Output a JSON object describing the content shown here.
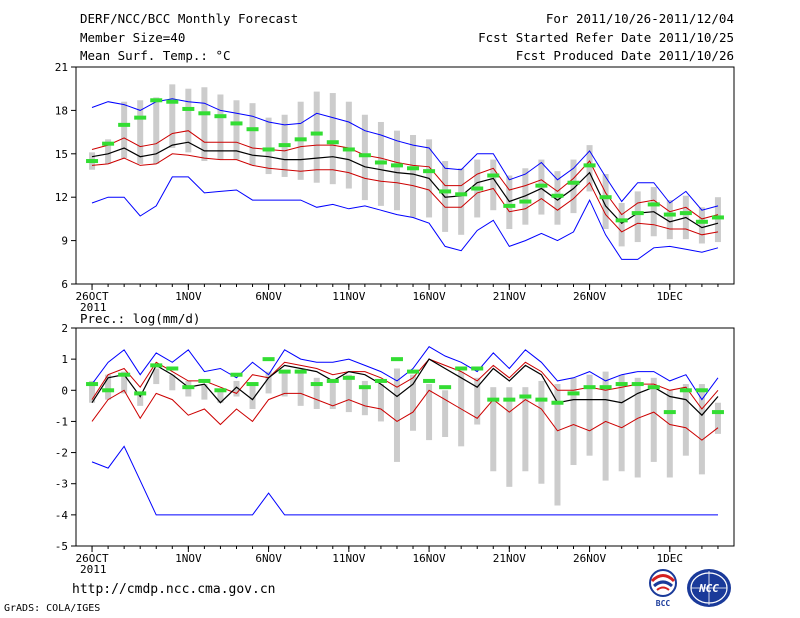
{
  "header": {
    "line1_left": "DERF/NCC/BCC Monthly Forecast",
    "line2_left": "Member Size=40",
    "line3_left": "Mean Surf. Temp.: °C",
    "line1_right": "For 2011/10/26-2011/12/04",
    "line2_right": "Fcst Started Refer Date 2011/10/25",
    "line3_right": "Fcst Produced Date 2011/10/26"
  },
  "precip_label": "Prec.: log(mm/d)",
  "url": "http://cmdp.ncc.cma.gov.cn",
  "credit": "GrADS: COLA/IGES",
  "logos": {
    "bcc": "BCC",
    "ncc": "NCC"
  },
  "colors": {
    "envelope": "#0000ff",
    "spread": "#cc0000",
    "mean": "#000000",
    "obs": "#33dd33",
    "box": "#cccccc"
  },
  "chart_data": [
    {
      "type": "line",
      "title": "Mean Surf. Temp.: °C",
      "x_days": [
        1,
        2,
        3,
        4,
        5,
        6,
        7,
        8,
        9,
        10,
        11,
        12,
        13,
        14,
        15,
        16,
        17,
        18,
        19,
        20,
        21,
        22,
        23,
        24,
        25,
        26,
        27,
        28,
        29,
        30,
        31,
        32,
        33,
        34,
        35,
        36,
        37,
        38,
        39,
        40
      ],
      "xlim": [
        0,
        41
      ],
      "ylim": [
        6,
        21
      ],
      "yticks": [
        6,
        9,
        12,
        15,
        18,
        21
      ],
      "xticks": [
        {
          "day": 1,
          "label": "26OCT",
          "sublabel": "2011"
        },
        {
          "day": 7,
          "label": "1NOV"
        },
        {
          "day": 12,
          "label": "6NOV"
        },
        {
          "day": 17,
          "label": "11NOV"
        },
        {
          "day": 22,
          "label": "16NOV"
        },
        {
          "day": 27,
          "label": "21NOV"
        },
        {
          "day": 32,
          "label": "26NOV"
        },
        {
          "day": 37,
          "label": "1DEC"
        }
      ],
      "series": [
        {
          "name": "max",
          "role": "envelope",
          "values": [
            18.2,
            18.6,
            18.4,
            18.0,
            18.6,
            18.8,
            18.6,
            18.5,
            18.0,
            17.8,
            17.6,
            17.2,
            17.0,
            17.1,
            17.8,
            17.5,
            17.2,
            16.6,
            16.3,
            15.9,
            15.6,
            15.4,
            14.0,
            13.9,
            15.0,
            15.0,
            13.2,
            13.6,
            14.4,
            13.2,
            14.0,
            15.2,
            13.4,
            11.7,
            13.0,
            13.0,
            11.6,
            12.4,
            11.1,
            11.4
          ]
        },
        {
          "name": "upper",
          "role": "spread",
          "values": [
            15.3,
            15.6,
            16.1,
            15.5,
            15.7,
            16.4,
            16.6,
            15.8,
            15.8,
            15.8,
            15.4,
            15.3,
            15.2,
            15.5,
            15.6,
            15.6,
            15.4,
            14.9,
            14.7,
            14.4,
            14.2,
            14.1,
            12.8,
            12.8,
            13.6,
            14.0,
            12.5,
            12.8,
            13.2,
            12.4,
            13.3,
            14.5,
            12.3,
            10.8,
            11.6,
            11.8,
            11.0,
            11.3,
            10.5,
            10.8
          ]
        },
        {
          "name": "mean",
          "role": "mean",
          "values": [
            14.8,
            15.0,
            15.4,
            14.8,
            15.0,
            15.6,
            15.8,
            15.2,
            15.2,
            15.2,
            14.9,
            14.8,
            14.6,
            14.6,
            14.7,
            14.8,
            14.6,
            14.1,
            13.9,
            13.7,
            13.6,
            13.3,
            12.0,
            12.1,
            13.0,
            13.3,
            11.7,
            12.1,
            12.6,
            11.8,
            12.6,
            13.7,
            11.4,
            10.2,
            10.9,
            11.0,
            10.3,
            10.6,
            9.9,
            10.2
          ]
        },
        {
          "name": "lower",
          "role": "spread",
          "values": [
            14.2,
            14.3,
            14.7,
            14.2,
            14.3,
            15.0,
            14.9,
            14.7,
            14.6,
            14.6,
            14.2,
            14.0,
            13.9,
            13.8,
            13.9,
            13.9,
            13.7,
            13.3,
            13.1,
            13.0,
            12.8,
            12.5,
            11.3,
            11.3,
            12.3,
            12.6,
            11.0,
            11.2,
            11.9,
            11.1,
            11.9,
            13.0,
            10.8,
            9.6,
            10.2,
            10.1,
            9.8,
            9.8,
            9.4,
            9.6
          ]
        },
        {
          "name": "min",
          "role": "envelope",
          "values": [
            11.6,
            12.0,
            12.0,
            10.7,
            11.4,
            13.4,
            13.4,
            12.3,
            12.4,
            12.5,
            11.8,
            11.8,
            11.8,
            11.8,
            11.3,
            11.5,
            11.2,
            11.4,
            11.1,
            10.8,
            10.6,
            10.2,
            8.6,
            8.3,
            9.7,
            10.4,
            8.6,
            9.0,
            9.5,
            9.0,
            9.6,
            11.8,
            9.4,
            7.7,
            7.7,
            8.5,
            8.6,
            8.4,
            8.2,
            8.5
          ]
        },
        {
          "name": "obs",
          "role": "observation",
          "values": [
            14.5,
            15.7,
            17.0,
            17.5,
            18.7,
            18.6,
            18.1,
            17.8,
            17.6,
            17.1,
            16.7,
            15.3,
            15.6,
            16.0,
            16.4,
            15.8,
            15.3,
            14.9,
            14.4,
            14.2,
            14.0,
            13.8,
            12.4,
            12.2,
            12.6,
            13.5,
            11.4,
            11.7,
            12.8,
            12.1,
            13.0,
            14.2,
            12.0,
            10.4,
            10.9,
            11.5,
            10.8,
            10.9,
            10.3,
            10.6
          ]
        },
        {
          "name": "box_high",
          "role": "box",
          "values": [
            15.1,
            16.0,
            18.6,
            18.7,
            18.9,
            19.8,
            19.5,
            19.6,
            19.1,
            18.7,
            18.5,
            17.5,
            17.7,
            18.6,
            19.3,
            19.2,
            18.6,
            17.7,
            17.2,
            16.6,
            16.3,
            16.0,
            14.5,
            14.0,
            14.6,
            14.6,
            13.5,
            14.0,
            14.6,
            13.8,
            14.6,
            15.6,
            13.6,
            11.6,
            12.4,
            12.7,
            11.8,
            12.1,
            11.3,
            12.0
          ]
        },
        {
          "name": "box_low",
          "role": "box",
          "values": [
            13.9,
            14.3,
            14.7,
            14.3,
            14.3,
            15.4,
            15.1,
            14.5,
            14.6,
            14.6,
            14.2,
            13.6,
            13.4,
            13.2,
            13.0,
            12.9,
            12.6,
            11.8,
            11.4,
            11.1,
            10.6,
            10.6,
            9.6,
            9.4,
            10.6,
            11.1,
            9.8,
            10.1,
            10.8,
            10.1,
            10.9,
            12.4,
            9.8,
            8.6,
            8.9,
            9.3,
            9.1,
            9.1,
            8.8,
            8.9
          ]
        }
      ]
    },
    {
      "type": "line",
      "title": "Prec.: log(mm/d)",
      "x_days": [
        1,
        2,
        3,
        4,
        5,
        6,
        7,
        8,
        9,
        10,
        11,
        12,
        13,
        14,
        15,
        16,
        17,
        18,
        19,
        20,
        21,
        22,
        23,
        24,
        25,
        26,
        27,
        28,
        29,
        30,
        31,
        32,
        33,
        34,
        35,
        36,
        37,
        38,
        39,
        40
      ],
      "xlim": [
        0,
        41
      ],
      "ylim": [
        -5,
        2
      ],
      "yticks": [
        -5,
        -4,
        -3,
        -2,
        -1,
        0,
        1,
        2
      ],
      "xticks": [
        {
          "day": 1,
          "label": "26OCT",
          "sublabel": "2011"
        },
        {
          "day": 7,
          "label": "1NOV"
        },
        {
          "day": 12,
          "label": "6NOV"
        },
        {
          "day": 17,
          "label": "11NOV"
        },
        {
          "day": 22,
          "label": "16NOV"
        },
        {
          "day": 27,
          "label": "21NOV"
        },
        {
          "day": 32,
          "label": "26NOV"
        },
        {
          "day": 37,
          "label": "1DEC"
        }
      ],
      "series": [
        {
          "name": "max",
          "role": "envelope",
          "values": [
            0.2,
            0.9,
            1.3,
            0.5,
            1.2,
            0.9,
            1.3,
            0.6,
            0.7,
            0.4,
            0.9,
            0.5,
            1.3,
            1.0,
            0.9,
            0.9,
            1.0,
            0.8,
            0.6,
            0.3,
            0.7,
            1.4,
            1.1,
            0.9,
            0.6,
            1.2,
            0.7,
            1.3,
            0.9,
            0.3,
            0.4,
            0.6,
            0.3,
            0.5,
            0.6,
            0.6,
            0.3,
            0.5,
            -0.3,
            0.4
          ]
        },
        {
          "name": "upper",
          "role": "spread",
          "values": [
            -0.3,
            0.5,
            0.7,
            0.1,
            0.9,
            0.6,
            0.3,
            0.3,
            0.1,
            -0.1,
            0.5,
            0.4,
            0.9,
            0.8,
            0.7,
            0.5,
            0.6,
            0.6,
            0.4,
            0.1,
            0.4,
            1.0,
            0.8,
            0.6,
            0.3,
            0.8,
            0.4,
            0.9,
            0.6,
            0.0,
            0.0,
            0.1,
            0.0,
            0.1,
            0.2,
            0.2,
            0.0,
            0.1,
            -0.6,
            0.0
          ]
        },
        {
          "name": "mean",
          "role": "mean",
          "values": [
            -0.4,
            0.4,
            0.5,
            -0.2,
            0.8,
            0.5,
            0.1,
            0.2,
            -0.4,
            0.1,
            -0.3,
            0.4,
            0.8,
            0.7,
            0.6,
            0.3,
            0.6,
            0.5,
            0.2,
            -0.2,
            0.2,
            1.0,
            0.7,
            0.4,
            0.1,
            0.7,
            0.3,
            0.8,
            0.5,
            -0.4,
            -0.3,
            -0.3,
            -0.3,
            -0.4,
            -0.1,
            0.1,
            -0.2,
            -0.3,
            -0.8,
            -0.2
          ]
        },
        {
          "name": "lower",
          "role": "spread",
          "values": [
            -1.0,
            -0.3,
            0.0,
            -0.9,
            -0.1,
            -0.3,
            -0.8,
            -0.6,
            -1.1,
            -0.6,
            -1.0,
            -0.3,
            -0.1,
            -0.1,
            -0.3,
            -0.5,
            -0.3,
            -0.5,
            -0.6,
            -1.0,
            -0.7,
            0.0,
            -0.3,
            -0.6,
            -0.9,
            -0.3,
            -0.7,
            -0.3,
            -0.6,
            -1.3,
            -1.1,
            -1.3,
            -1.0,
            -1.2,
            -0.9,
            -0.7,
            -1.1,
            -1.2,
            -1.6,
            -1.2
          ]
        },
        {
          "name": "min",
          "role": "envelope",
          "values": [
            -2.3,
            -2.5,
            -1.8,
            -2.9,
            -4.0,
            -4.0,
            -4.0,
            -4.0,
            -4.0,
            -4.0,
            -4.0,
            -3.3,
            -4.0,
            -4.0,
            -4.0,
            -4.0,
            -4.0,
            -4.0,
            -4.0,
            -4.0,
            -4.0,
            -4.0,
            -4.0,
            -4.0,
            -4.0,
            -4.0,
            -4.0,
            -4.0,
            -4.0,
            -4.0,
            -4.0,
            -4.0,
            -4.0,
            -4.0,
            -4.0,
            -4.0,
            -4.0,
            -4.0,
            -4.0,
            -4.0
          ]
        },
        {
          "name": "obs",
          "role": "observation",
          "values": [
            0.2,
            0.0,
            0.5,
            -0.1,
            0.8,
            0.7,
            0.1,
            0.3,
            0.0,
            0.5,
            0.2,
            1.0,
            0.6,
            0.6,
            0.2,
            0.3,
            0.4,
            0.1,
            0.3,
            1.0,
            0.6,
            0.3,
            0.1,
            0.7,
            0.7,
            -0.3,
            -0.3,
            -0.2,
            -0.3,
            -0.4,
            -0.1,
            0.1,
            0.1,
            0.2,
            0.2,
            0.1,
            -0.7,
            0.0,
            0.0,
            -0.7
          ]
        },
        {
          "name": "box_high",
          "role": "box",
          "values": [
            0.3,
            0.5,
            0.6,
            -0.1,
            0.7,
            0.5,
            0.3,
            0.2,
            0.0,
            0.3,
            0.2,
            0.6,
            0.6,
            0.6,
            0.4,
            0.3,
            0.5,
            0.3,
            0.2,
            0.7,
            0.5,
            0.2,
            0.0,
            0.6,
            0.4,
            0.1,
            0.1,
            0.1,
            0.3,
            0.2,
            0.4,
            0.5,
            0.6,
            0.5,
            0.4,
            0.4,
            0.0,
            0.2,
            0.2,
            -0.4
          ]
        },
        {
          "name": "box_low",
          "role": "box",
          "values": [
            -0.4,
            -0.3,
            -0.1,
            -0.5,
            0.2,
            0.0,
            -0.2,
            -0.3,
            -0.4,
            -0.2,
            -0.6,
            -0.1,
            -0.2,
            -0.5,
            -0.6,
            -0.6,
            -0.7,
            -0.8,
            -1.0,
            -2.3,
            -1.3,
            -1.6,
            -1.5,
            -1.8,
            -1.1,
            -2.6,
            -3.1,
            -2.6,
            -3.0,
            -3.7,
            -2.4,
            -2.1,
            -2.9,
            -2.6,
            -2.8,
            -2.3,
            -2.8,
            -2.1,
            -2.7,
            -1.4
          ]
        }
      ]
    }
  ]
}
